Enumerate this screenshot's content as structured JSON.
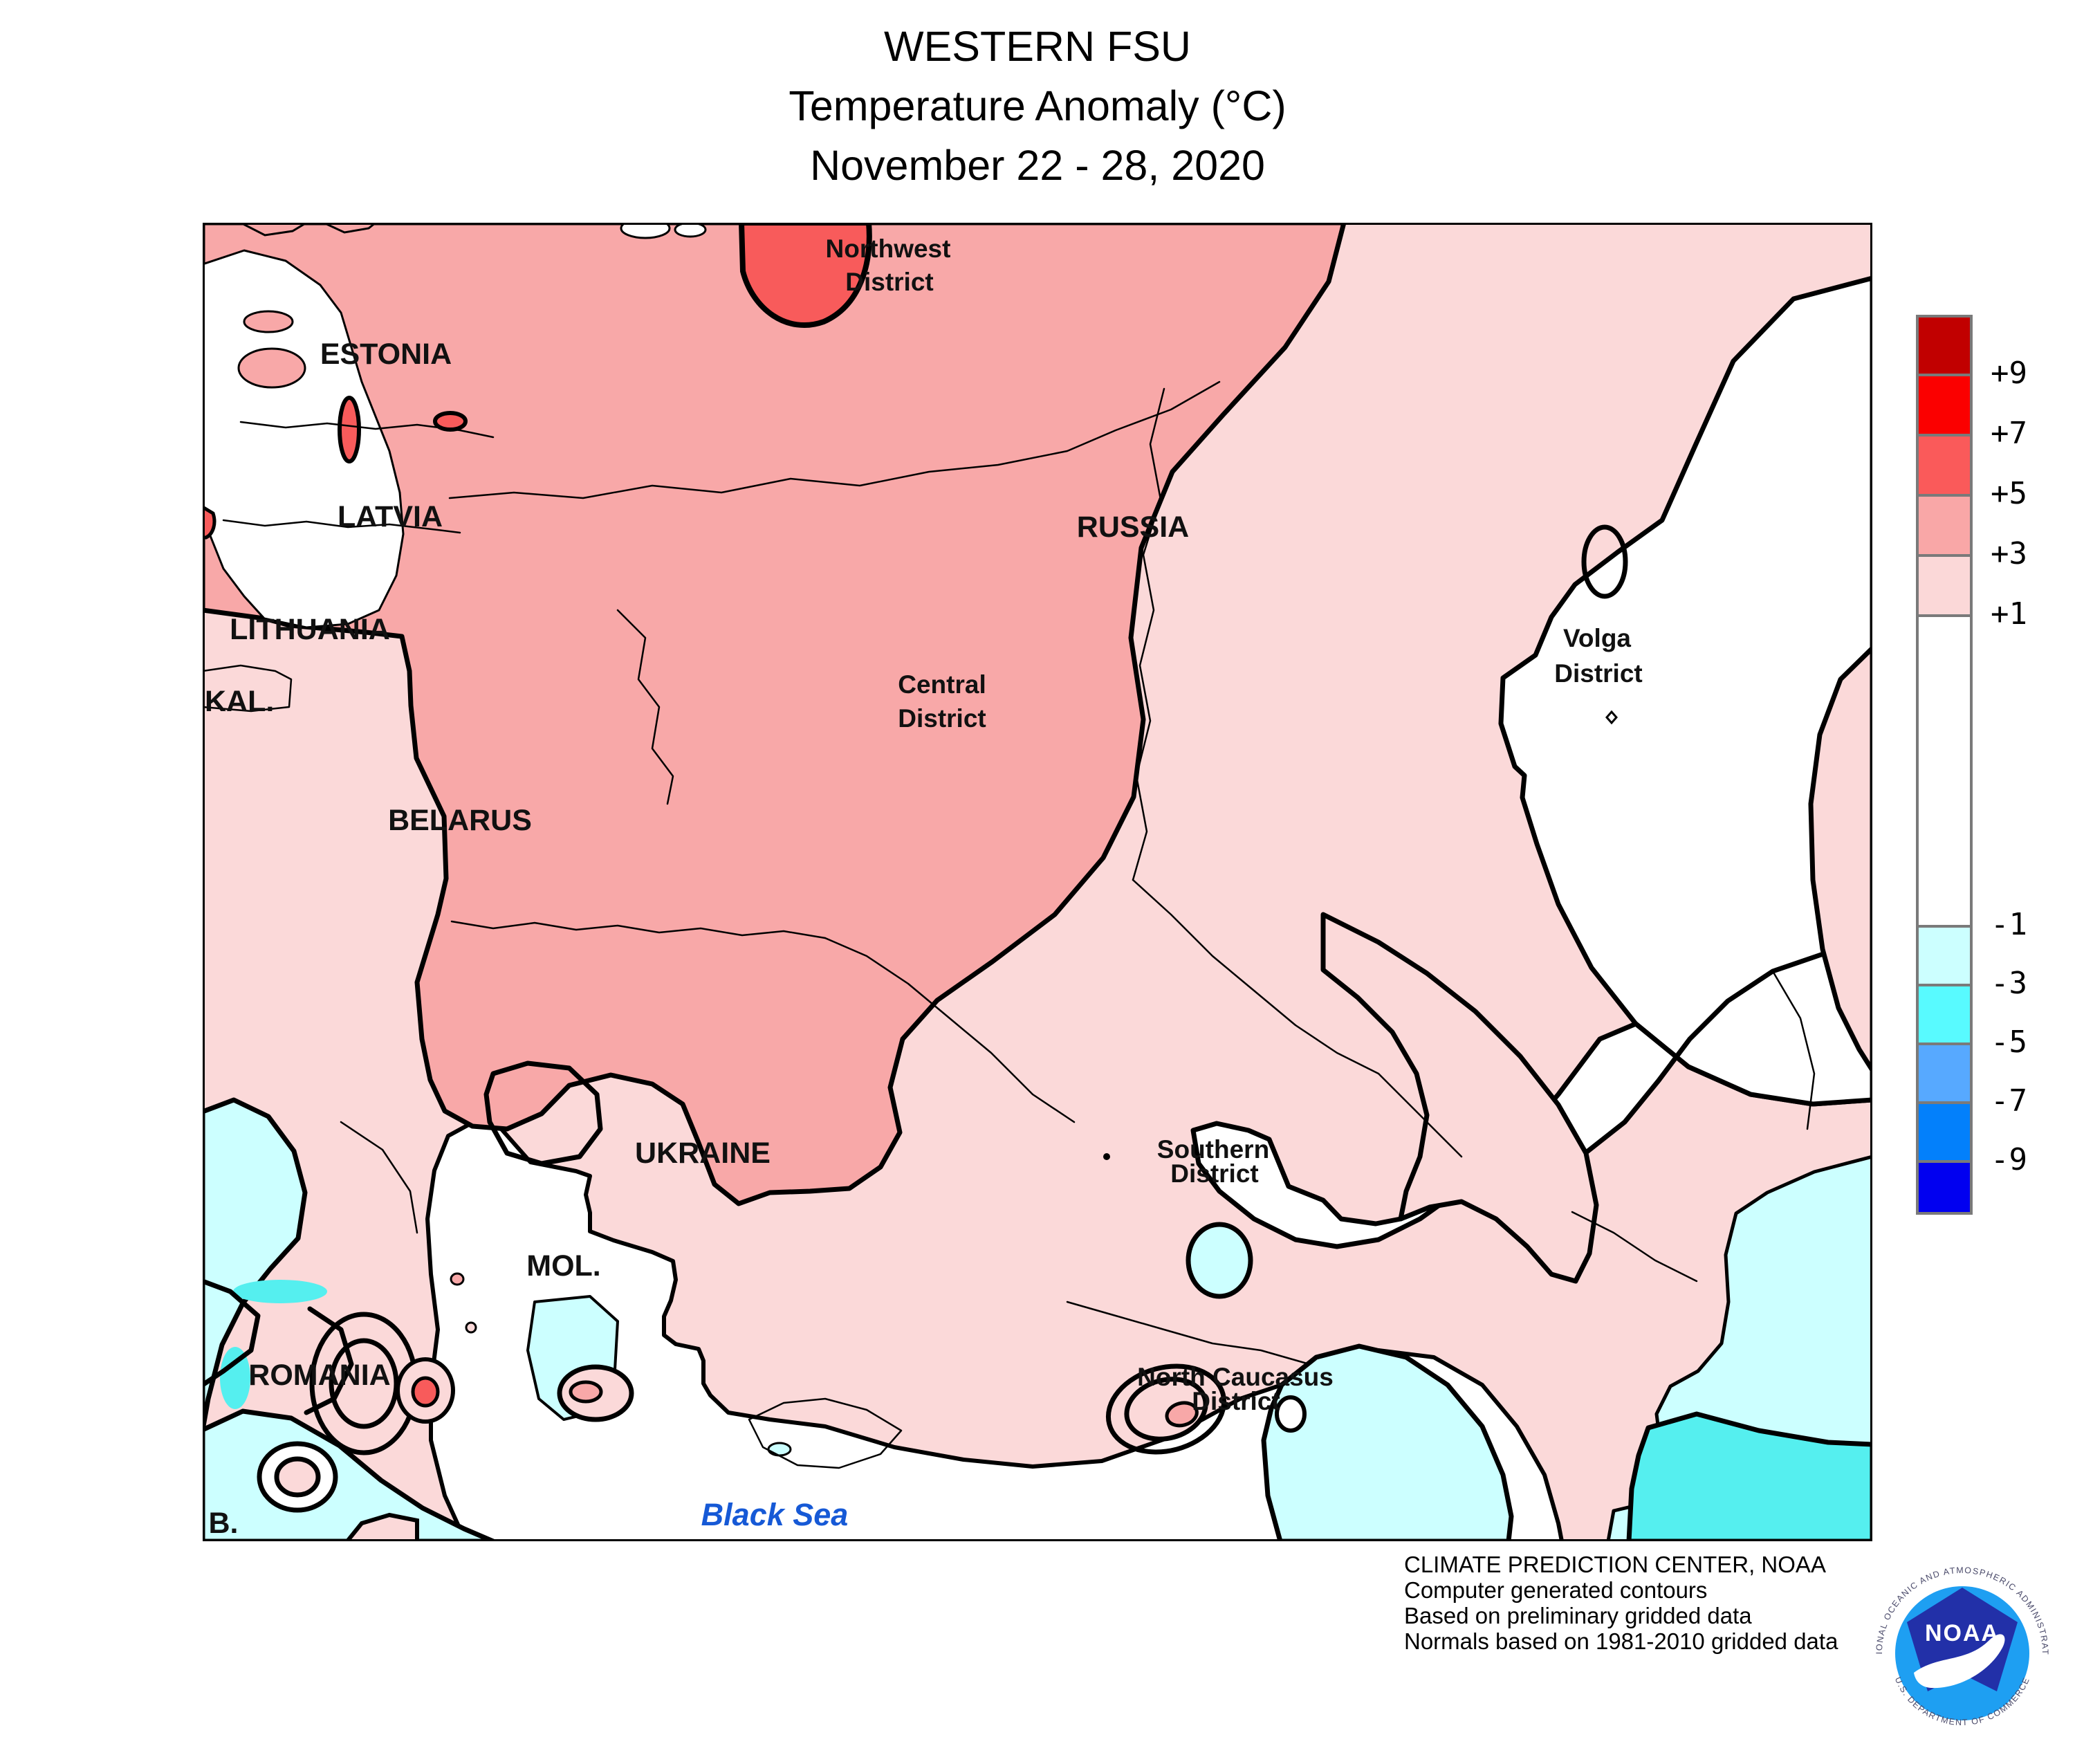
{
  "title": {
    "line1": "WESTERN FSU",
    "line2": "Temperature Anomaly (°C)",
    "line3": "November 22 - 28, 2020"
  },
  "map": {
    "labels": {
      "northwest_district": {
        "line1": "Northwest",
        "line2": "District"
      },
      "estonia": {
        "text": "ESTONIA"
      },
      "latvia": {
        "text": "LATVIA"
      },
      "lithuania": {
        "text": "LITHUANIA"
      },
      "kaliningrad": {
        "text": "KAL."
      },
      "belarus": {
        "text": "BELARUS"
      },
      "russia": {
        "text": "RUSSIA"
      },
      "central_district": {
        "line1": "Central",
        "line2": "District"
      },
      "volga_district": {
        "line1": "Volga",
        "line2": "District"
      },
      "ukraine": {
        "text": "UKRAINE"
      },
      "moldova": {
        "text": "MOL."
      },
      "romania": {
        "text": "ROMANIA"
      },
      "bulgaria": {
        "text": "B."
      },
      "southern_district": {
        "line1": "Southern",
        "line2": "District"
      },
      "north_caucasus_district": {
        "line1": "North Caucasus",
        "line2": "District"
      },
      "black_sea": {
        "text": "Black Sea"
      }
    },
    "fill_colors": {
      "plus_5_7": "#F85B5B",
      "plus_3_5": "#F8A8A8",
      "plus_1_3": "#FBD9D9",
      "neutral": "#FFFFFF",
      "minus_1_3": "#CCFFFF",
      "minus_3_5": "#55EFEF"
    }
  },
  "legend": {
    "labels": [
      "+9",
      "+7",
      "+5",
      "+3",
      "+1",
      "-1",
      "-3",
      "-5",
      "-7",
      "-9"
    ],
    "boundaries": [
      9,
      7,
      5,
      3,
      1,
      -1,
      -3,
      -5,
      -7,
      -9
    ],
    "colors": [
      "#C10000",
      "#FB0000",
      "#FA5A5A",
      "#F9A7A7",
      "#FBD8D8",
      "#FFFFFF",
      "#CCFFFF",
      "#58FAFF",
      "#57A9FF",
      "#0380FB",
      "#0100F0"
    ],
    "border_color": "#7a7a7a"
  },
  "credits": {
    "line1": "CLIMATE PREDICTION CENTER, NOAA",
    "line2": "Computer generated contours",
    "line3": "Based on preliminary gridded data",
    "line4": "Normals based on 1981-2010 gridded data"
  },
  "logo": {
    "name": "NOAA",
    "top_text": "NATIONAL OCEANIC AND ATMOSPHERIC ADMINISTRATION",
    "bottom_text": "U.S. DEPARTMENT OF COMMERCE",
    "dark_blue": "#2230A8",
    "light_blue": "#1E9FF2"
  }
}
